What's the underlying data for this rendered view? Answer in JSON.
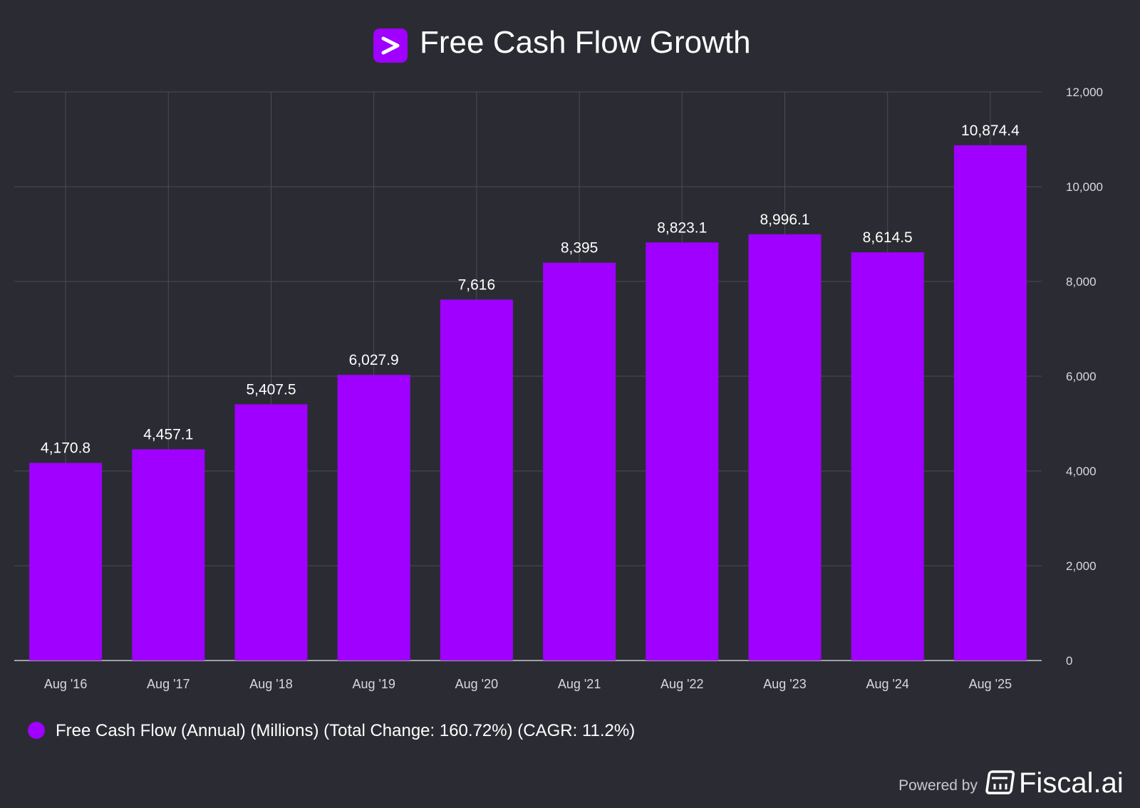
{
  "colors": {
    "background": "#2b2c33",
    "bar": "#9f00ff",
    "grid": "#4a4b54",
    "axis": "#c8c8cc"
  },
  "logo_icon": "chevron-right-icon",
  "brand_icon": "calculator-icon",
  "powered_by": "Powered by",
  "brand_name": "Fiscal.ai",
  "legend": {
    "label": "Free Cash Flow (Annual) (Millions) (Total Change: 160.72%) (CAGR: 11.2%)"
  },
  "chart_data": {
    "type": "bar",
    "title": "Free Cash Flow Growth",
    "xlabel": "",
    "ylabel": "",
    "categories": [
      "Aug '16",
      "Aug '17",
      "Aug '18",
      "Aug '19",
      "Aug '20",
      "Aug '21",
      "Aug '22",
      "Aug '23",
      "Aug '24",
      "Aug '25"
    ],
    "values": [
      4170.8,
      4457.1,
      5407.5,
      6027.9,
      7616,
      8395,
      8823.1,
      8996.1,
      8614.5,
      10874.4
    ],
    "value_labels": [
      "4,170.8",
      "4,457.1",
      "5,407.5",
      "6,027.9",
      "7,616",
      "8,395",
      "8,823.1",
      "8,996.1",
      "8,614.5",
      "10,874.4"
    ],
    "ylim": [
      0,
      12000
    ],
    "yticks": [
      0,
      2000,
      4000,
      6000,
      8000,
      10000,
      12000
    ],
    "ytick_labels": [
      "0",
      "2,000",
      "4,000",
      "6,000",
      "8,000",
      "10,000",
      "12,000"
    ],
    "grid": true,
    "y_axis_side": "right",
    "legend_position": "bottom-left"
  }
}
